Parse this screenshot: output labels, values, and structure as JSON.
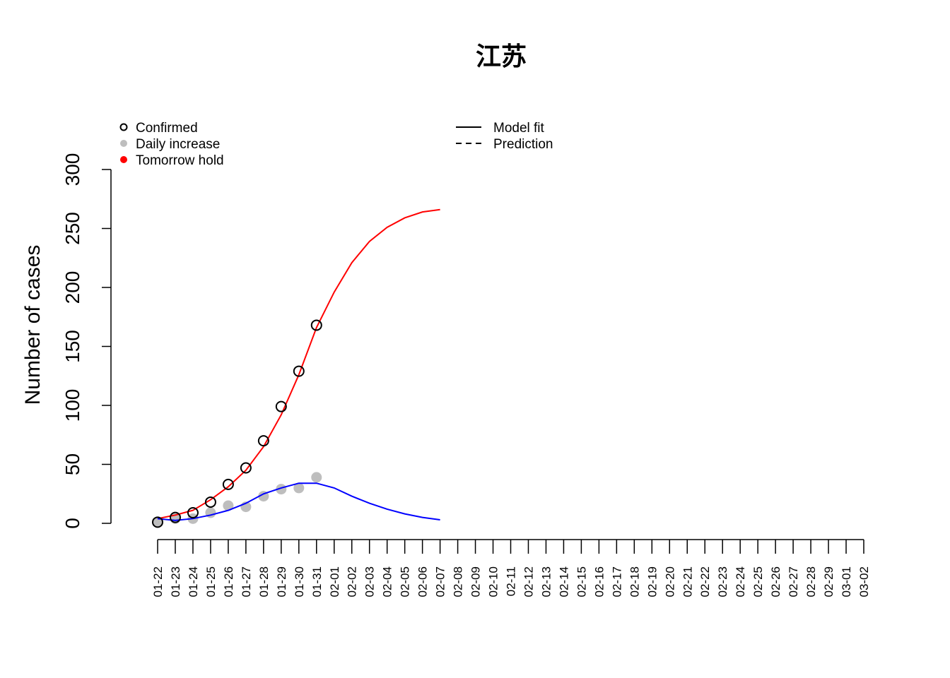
{
  "chart_data": {
    "type": "line",
    "title": "江苏",
    "ylabel": "Number of cases",
    "categories": [
      "01-22",
      "01-23",
      "01-24",
      "01-25",
      "01-26",
      "01-27",
      "01-28",
      "01-29",
      "01-30",
      "01-31",
      "02-01",
      "02-02",
      "02-03",
      "02-04",
      "02-05",
      "02-06",
      "02-07",
      "02-08",
      "02-09",
      "02-10",
      "02-11",
      "02-12",
      "02-13",
      "02-14",
      "02-15",
      "02-16",
      "02-17",
      "02-18",
      "02-19",
      "02-20",
      "02-21",
      "02-22",
      "02-23",
      "02-24",
      "02-25",
      "02-26",
      "02-27",
      "02-28",
      "02-29",
      "03-01",
      "03-02"
    ],
    "series": [
      {
        "name": "Confirmed",
        "color": "#000000",
        "style": "open-point",
        "values": [
          1,
          5,
          9,
          18,
          33,
          47,
          70,
          99,
          129,
          168,
          null,
          null,
          null,
          null,
          null,
          null,
          null,
          null,
          null,
          null,
          null,
          null,
          null,
          null,
          null,
          null,
          null,
          null,
          null,
          null,
          null,
          null,
          null,
          null,
          null,
          null,
          null,
          null,
          null,
          null,
          null
        ]
      },
      {
        "name": "Daily increase",
        "color": "#bebebe",
        "style": "filled-point",
        "values": [
          1,
          4,
          4,
          9,
          15,
          14,
          23,
          29,
          30,
          39,
          null,
          null,
          null,
          null,
          null,
          null,
          null,
          null,
          null,
          null,
          null,
          null,
          null,
          null,
          null,
          null,
          null,
          null,
          null,
          null,
          null,
          null,
          null,
          null,
          null,
          null,
          null,
          null,
          null,
          null,
          null
        ]
      },
      {
        "color": "#ff0000",
        "style": "line",
        "values": [
          4,
          7,
          11,
          20,
          31,
          45,
          65,
          92,
          126,
          166,
          196,
          221,
          239,
          251,
          259,
          264,
          266,
          null,
          null,
          null,
          null,
          null,
          null,
          null,
          null,
          null,
          null,
          null,
          null,
          null,
          null,
          null,
          null,
          null,
          null,
          null,
          null,
          null,
          null,
          null,
          null
        ]
      },
      {
        "color": "#0000ff",
        "style": "line",
        "values": [
          4,
          2.5,
          4,
          7,
          11,
          17,
          25,
          30,
          34,
          34,
          30,
          23,
          17,
          12,
          8,
          5,
          3,
          null,
          null,
          null,
          null,
          null,
          null,
          null,
          null,
          null,
          null,
          null,
          null,
          null,
          null,
          null,
          null,
          null,
          null,
          null,
          null,
          null,
          null,
          null,
          null
        ]
      }
    ],
    "legend": [
      {
        "label": "Confirmed",
        "symbol": "open-point",
        "color": "#000000"
      },
      {
        "label": "Daily increase",
        "symbol": "filled-point",
        "color": "#bebebe"
      },
      {
        "label": "Tomorrow hold",
        "symbol": "filled-point",
        "color": "#ff0000"
      },
      {
        "label": "Model fit",
        "symbol": "line",
        "color": "#000000"
      },
      {
        "label": "Prediction",
        "symbol": "dashed-line",
        "color": "#000000"
      }
    ],
    "ylim": [
      0,
      300
    ],
    "yticks": [
      0,
      50,
      100,
      150,
      200,
      250,
      300
    ]
  }
}
